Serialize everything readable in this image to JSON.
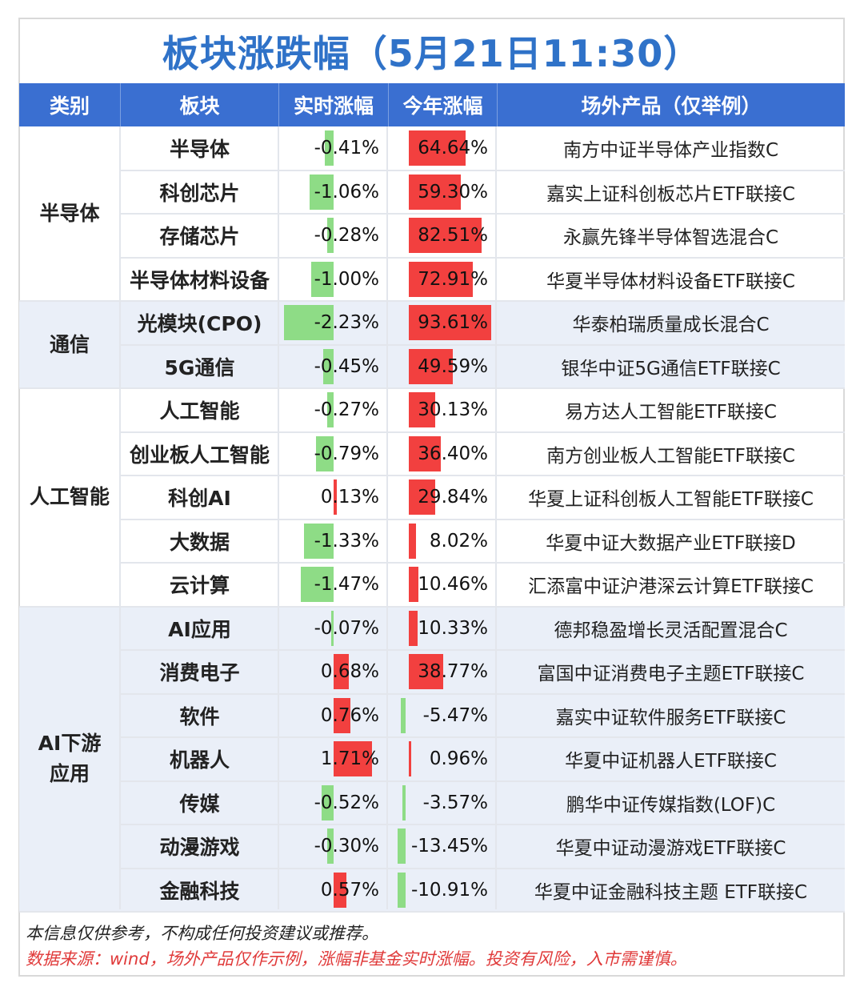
{
  "title": "板块涨跌幅（5月21日11:30）",
  "headers": [
    "类别",
    "板块",
    "实时涨幅",
    "今年涨幅",
    "场外产品（仅举例）"
  ],
  "colors": {
    "header_bg": "#3a6fd1",
    "title": "#2f72c8",
    "up": "#f2403f",
    "down": "#8edc86",
    "band_alt": "#eaeff8"
  },
  "categories": [
    {
      "label": "半导体",
      "lines": [
        "半导体"
      ],
      "start": 0,
      "count": 4,
      "shaded": false
    },
    {
      "label": "通信",
      "lines": [
        "通信"
      ],
      "start": 4,
      "count": 2,
      "shaded": true
    },
    {
      "label": "人工智能",
      "lines": [
        "人工智能"
      ],
      "start": 6,
      "count": 5,
      "shaded": false
    },
    {
      "label": "AI下游应用",
      "lines": [
        "AI下游",
        "应用"
      ],
      "start": 11,
      "count": 7,
      "shaded": true
    }
  ],
  "rows": [
    {
      "sector": "半导体",
      "rt_text": "-0.41%",
      "rt": -0.41,
      "ytd_text": "64.64%",
      "ytd": 64.64,
      "product": "南方中证半导体产业指数C"
    },
    {
      "sector": "科创芯片",
      "rt_text": "-1.06%",
      "rt": -1.06,
      "ytd_text": "59.30%",
      "ytd": 59.3,
      "product": "嘉实上证科创板芯片ETF联接C"
    },
    {
      "sector": "存储芯片",
      "rt_text": "-0.28%",
      "rt": -0.28,
      "ytd_text": "82.51%",
      "ytd": 82.51,
      "product": "永赢先锋半导体智选混合C"
    },
    {
      "sector": "半导体材料设备",
      "rt_text": "-1.00%",
      "rt": -1.0,
      "ytd_text": "72.91%",
      "ytd": 72.91,
      "product": "华夏半导体材料设备ETF联接C"
    },
    {
      "sector": "光模块(CPO)",
      "rt_text": "-2.23%",
      "rt": -2.23,
      "ytd_text": "93.61%",
      "ytd": 93.61,
      "product": "华泰柏瑞质量成长混合C"
    },
    {
      "sector": "5G通信",
      "rt_text": "-0.45%",
      "rt": -0.45,
      "ytd_text": "49.59%",
      "ytd": 49.59,
      "product": "银华中证5G通信ETF联接C"
    },
    {
      "sector": "人工智能",
      "rt_text": "-0.27%",
      "rt": -0.27,
      "ytd_text": "30.13%",
      "ytd": 30.13,
      "product": "易方达人工智能ETF联接C"
    },
    {
      "sector": "创业板人工智能",
      "rt_text": "-0.79%",
      "rt": -0.79,
      "ytd_text": "36.40%",
      "ytd": 36.4,
      "product": "南方创业板人工智能ETF联接C"
    },
    {
      "sector": "科创AI",
      "rt_text": "0.13%",
      "rt": 0.13,
      "ytd_text": "29.84%",
      "ytd": 29.84,
      "product": "华夏上证科创板人工智能ETF联接C"
    },
    {
      "sector": "大数据",
      "rt_text": "-1.33%",
      "rt": -1.33,
      "ytd_text": "8.02%",
      "ytd": 8.02,
      "product": "华夏中证大数据产业ETF联接D"
    },
    {
      "sector": "云计算",
      "rt_text": "-1.47%",
      "rt": -1.47,
      "ytd_text": "10.46%",
      "ytd": 10.46,
      "product": "汇添富中证沪港深云计算ETF联接C"
    },
    {
      "sector": "AI应用",
      "rt_text": "-0.07%",
      "rt": -0.07,
      "ytd_text": "10.33%",
      "ytd": 10.33,
      "product": "德邦稳盈增长灵活配置混合C"
    },
    {
      "sector": "消费电子",
      "rt_text": "0.68%",
      "rt": 0.68,
      "ytd_text": "38.77%",
      "ytd": 38.77,
      "product": "富国中证消费电子主题ETF联接C"
    },
    {
      "sector": "软件",
      "rt_text": "0.76%",
      "rt": 0.76,
      "ytd_text": "-5.47%",
      "ytd": -5.47,
      "product": "嘉实中证软件服务ETF联接C"
    },
    {
      "sector": "机器人",
      "rt_text": "1.71%",
      "rt": 1.71,
      "ytd_text": "0.96%",
      "ytd": 0.96,
      "product": "华夏中证机器人ETF联接C"
    },
    {
      "sector": "传媒",
      "rt_text": "-0.52%",
      "rt": -0.52,
      "ytd_text": "-3.57%",
      "ytd": -3.57,
      "product": "鹏华中证传媒指数(LOF)C"
    },
    {
      "sector": "动漫游戏",
      "rt_text": "-0.30%",
      "rt": -0.3,
      "ytd_text": "-13.45%",
      "ytd": -13.45,
      "product": "华夏中证动漫游戏ETF联接C"
    },
    {
      "sector": "金融科技",
      "rt_text": "0.57%",
      "rt": 0.57,
      "ytd_text": "-10.91%",
      "ytd": -10.91,
      "product": "华夏中证金融科技主题 ETF联接C"
    }
  ],
  "footer": {
    "disclaimer": "本信息仅供参考，不构成任何投资建议或推荐。",
    "source": "数据来源：wind，场外产品仅作示例，涨幅非基金实时涨幅。投资有风险，入市需谨慎。"
  }
}
